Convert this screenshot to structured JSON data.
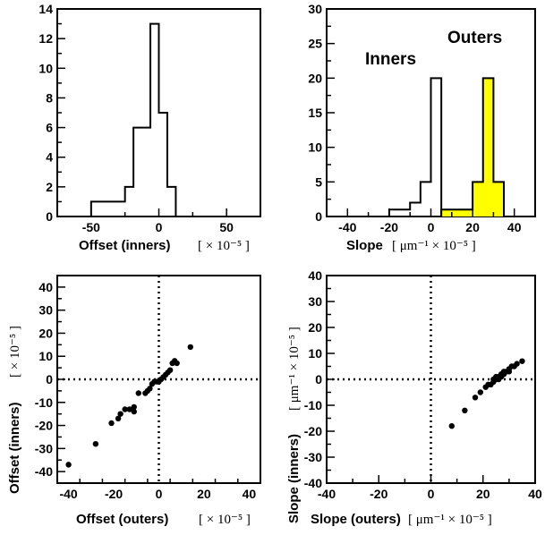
{
  "chart_data": [
    {
      "type": "histogram",
      "xlim": [
        -75,
        75
      ],
      "ylim": [
        0,
        14
      ],
      "xticks": [
        -50,
        0,
        50
      ],
      "yticks": [
        0,
        2,
        4,
        6,
        8,
        10,
        12,
        14
      ],
      "xlabel": "Offset (inners)",
      "xunit": "[ × 10⁻⁵ ]",
      "bin_width": 6.25,
      "series": [
        {
          "bin_starts": [
            -50,
            -43.75,
            -37.5,
            -31.25,
            -25,
            -18.75,
            -12.5,
            -6.25,
            0,
            6.25,
            12.5
          ],
          "counts": [
            1,
            1,
            1,
            1,
            2,
            6,
            6,
            13,
            7,
            2,
            0
          ],
          "fill": "#ffffff"
        }
      ]
    },
    {
      "type": "histogram",
      "xlim": [
        -50,
        50
      ],
      "ylim": [
        0,
        30
      ],
      "xticks": [
        -40,
        -20,
        0,
        20,
        40
      ],
      "yticks": [
        0,
        5,
        10,
        15,
        20,
        25,
        30
      ],
      "xlabel": "Slope",
      "xunit": "[ μm⁻¹ × 10⁻⁵ ]",
      "bin_width": 5,
      "annotations": [
        "Inners",
        "Outers"
      ],
      "series": [
        {
          "name": "Inners",
          "bin_starts": [
            -20,
            -15,
            -10,
            -5,
            0
          ],
          "counts": [
            1,
            1,
            2,
            5,
            20
          ],
          "fill": "#ffffff"
        },
        {
          "name": "Outers",
          "bin_starts": [
            5,
            10,
            15,
            20,
            25,
            30
          ],
          "counts": [
            1,
            1,
            1,
            5,
            20,
            5
          ],
          "fill": "#ffff00"
        }
      ]
    },
    {
      "type": "scatter",
      "xlim": [
        -45,
        45
      ],
      "ylim": [
        -45,
        45
      ],
      "xticks": [
        -40,
        -20,
        0,
        20,
        40
      ],
      "yticks": [
        -40,
        -30,
        -20,
        -10,
        0,
        10,
        20,
        30,
        40
      ],
      "xlabel": "Offset (outers)",
      "xunit": "[ × 10⁻⁵ ]",
      "ylabel": "Offset (inners)",
      "yunit": "[ × 10⁻⁵ ]",
      "reference_lines": {
        "x": 0,
        "y": 0
      },
      "points": [
        [
          -40,
          -37
        ],
        [
          -28,
          -28
        ],
        [
          -21,
          -19
        ],
        [
          -18,
          -17
        ],
        [
          -17,
          -15
        ],
        [
          -15,
          -13
        ],
        [
          -13,
          -13
        ],
        [
          -11,
          -14
        ],
        [
          -11,
          -12
        ],
        [
          -9,
          -6
        ],
        [
          -6,
          -6
        ],
        [
          -5,
          -5
        ],
        [
          -4,
          -4
        ],
        [
          -3,
          -2
        ],
        [
          -2,
          -1
        ],
        [
          -1,
          -1
        ],
        [
          0,
          -1
        ],
        [
          1,
          0
        ],
        [
          2,
          1
        ],
        [
          3,
          2
        ],
        [
          4,
          3
        ],
        [
          5,
          4
        ],
        [
          6,
          7
        ],
        [
          7,
          8
        ],
        [
          8,
          7
        ],
        [
          14,
          14
        ]
      ]
    },
    {
      "type": "scatter",
      "xlim": [
        -40,
        40
      ],
      "ylim": [
        -40,
        40
      ],
      "xticks": [
        -40,
        -20,
        0,
        20,
        40
      ],
      "yticks": [
        -40,
        -30,
        -20,
        -10,
        0,
        10,
        20,
        30,
        40
      ],
      "xlabel": "Slope (outers)",
      "xunit": "[ μm⁻¹ × 10⁻⁵ ]",
      "ylabel": "Slope (inners)",
      "yunit": "[ μm⁻¹ × 10⁻⁵ ]",
      "reference_lines": {
        "x": 0,
        "y": 0
      },
      "points": [
        [
          8,
          -18
        ],
        [
          13,
          -12
        ],
        [
          17,
          -7
        ],
        [
          19,
          -5
        ],
        [
          21,
          -3
        ],
        [
          22,
          -2
        ],
        [
          23,
          -2
        ],
        [
          24,
          -1
        ],
        [
          24,
          0
        ],
        [
          25,
          0
        ],
        [
          25,
          1
        ],
        [
          26,
          1
        ],
        [
          26,
          0
        ],
        [
          27,
          2
        ],
        [
          27,
          1
        ],
        [
          28,
          2
        ],
        [
          28,
          3
        ],
        [
          29,
          3
        ],
        [
          30,
          4
        ],
        [
          30,
          3
        ],
        [
          31,
          5
        ],
        [
          32,
          5
        ],
        [
          33,
          6
        ],
        [
          35,
          7
        ]
      ]
    }
  ]
}
